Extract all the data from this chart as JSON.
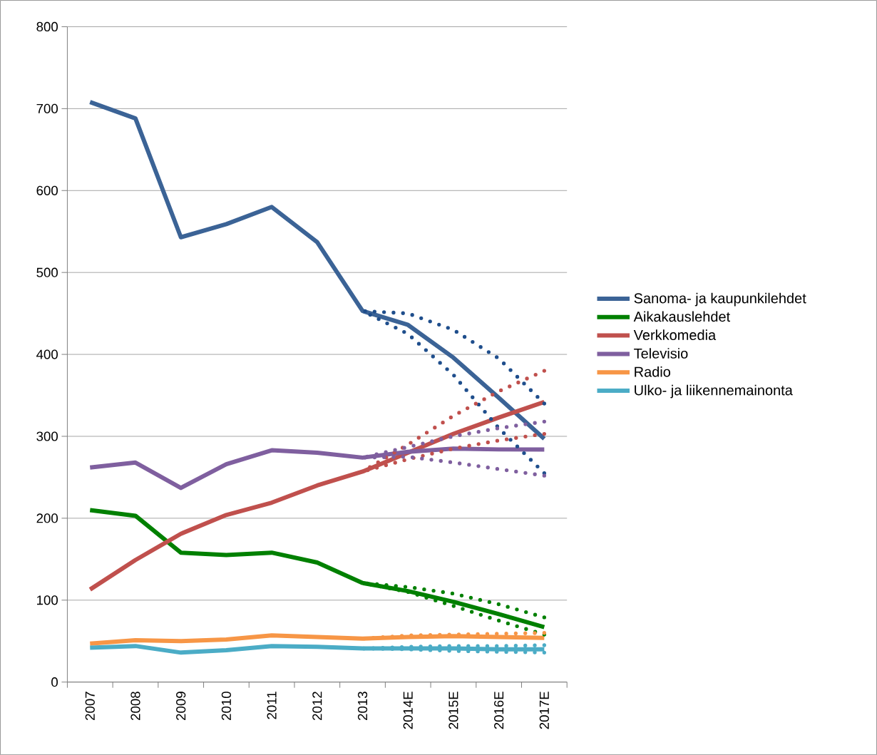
{
  "chart_data": {
    "type": "line",
    "categories": [
      "2007",
      "2008",
      "2009",
      "2010",
      "2011",
      "2012",
      "2013",
      "2014E",
      "2015E",
      "2016E",
      "2017E"
    ],
    "series": [
      {
        "name": "Sanoma- ja kaupunkilehdet",
        "color": "#3b6396",
        "values": [
          708,
          688,
          543,
          559,
          580,
          537,
          453,
          436,
          396,
          347,
          297
        ]
      },
      {
        "name": "Aikakauslehdet",
        "color": "#008000",
        "values": [
          210,
          203,
          158,
          155,
          158,
          146,
          121,
          111,
          98,
          83,
          67
        ]
      },
      {
        "name": "Verkkomedia",
        "color": "#c0504d",
        "values": [
          113,
          149,
          181,
          204,
          219,
          240,
          257,
          280,
          303,
          323,
          342
        ]
      },
      {
        "name": "Televisio",
        "color": "#7f5f9f",
        "values": [
          262,
          268,
          237,
          266,
          283,
          280,
          274,
          281,
          285,
          284,
          284
        ]
      },
      {
        "name": "Radio",
        "color": "#f79646",
        "values": [
          47,
          51,
          50,
          52,
          57,
          55,
          53,
          55,
          56,
          55,
          54
        ]
      },
      {
        "name": "Ulko- ja liikennemainonta",
        "color": "#4bacc6",
        "values": [
          42,
          44,
          36,
          39,
          44,
          43,
          41,
          41,
          41,
          40,
          40
        ]
      },
      {
        "color": "#1f4e8c",
        "line_style": "dotted",
        "values": [
          null,
          null,
          null,
          null,
          null,
          null,
          453,
          450,
          430,
          395,
          340
        ]
      },
      {
        "color": "#1f4e8c",
        "line_style": "dotted",
        "values": [
          null,
          null,
          null,
          null,
          null,
          null,
          453,
          425,
          375,
          310,
          255
        ]
      },
      {
        "color": "#008000",
        "line_style": "dotted",
        "values": [
          null,
          null,
          null,
          null,
          null,
          null,
          121,
          116,
          108,
          95,
          79
        ]
      },
      {
        "color": "#008000",
        "line_style": "dotted",
        "values": [
          null,
          null,
          null,
          null,
          null,
          null,
          121,
          110,
          93,
          75,
          58
        ]
      },
      {
        "color": "#c0504d",
        "line_style": "dotted",
        "values": [
          null,
          null,
          null,
          null,
          null,
          null,
          257,
          290,
          325,
          355,
          380
        ]
      },
      {
        "color": "#c0504d",
        "line_style": "dotted",
        "values": [
          null,
          null,
          null,
          null,
          null,
          null,
          257,
          272,
          285,
          295,
          303
        ]
      },
      {
        "color": "#7f5f9f",
        "line_style": "dotted",
        "values": [
          null,
          null,
          null,
          null,
          null,
          null,
          274,
          287,
          300,
          310,
          318
        ]
      },
      {
        "color": "#7f5f9f",
        "line_style": "dotted",
        "values": [
          null,
          null,
          null,
          null,
          null,
          null,
          274,
          275,
          268,
          260,
          252
        ]
      },
      {
        "color": "#f79646",
        "line_style": "dotted",
        "values": [
          null,
          null,
          null,
          null,
          null,
          null,
          53,
          57,
          58,
          59,
          60
        ]
      },
      {
        "color": "#4bacc6",
        "line_style": "dotted",
        "values": [
          null,
          null,
          null,
          null,
          null,
          null,
          41,
          43,
          44,
          44,
          45
        ]
      },
      {
        "color": "#4bacc6",
        "line_style": "dotted",
        "values": [
          null,
          null,
          null,
          null,
          null,
          null,
          41,
          40,
          38,
          37,
          36
        ]
      }
    ],
    "ylim": [
      0,
      800
    ],
    "yticks": [
      0,
      100,
      200,
      300,
      400,
      500,
      600,
      700,
      800
    ],
    "grid": "y",
    "legend": "right"
  }
}
